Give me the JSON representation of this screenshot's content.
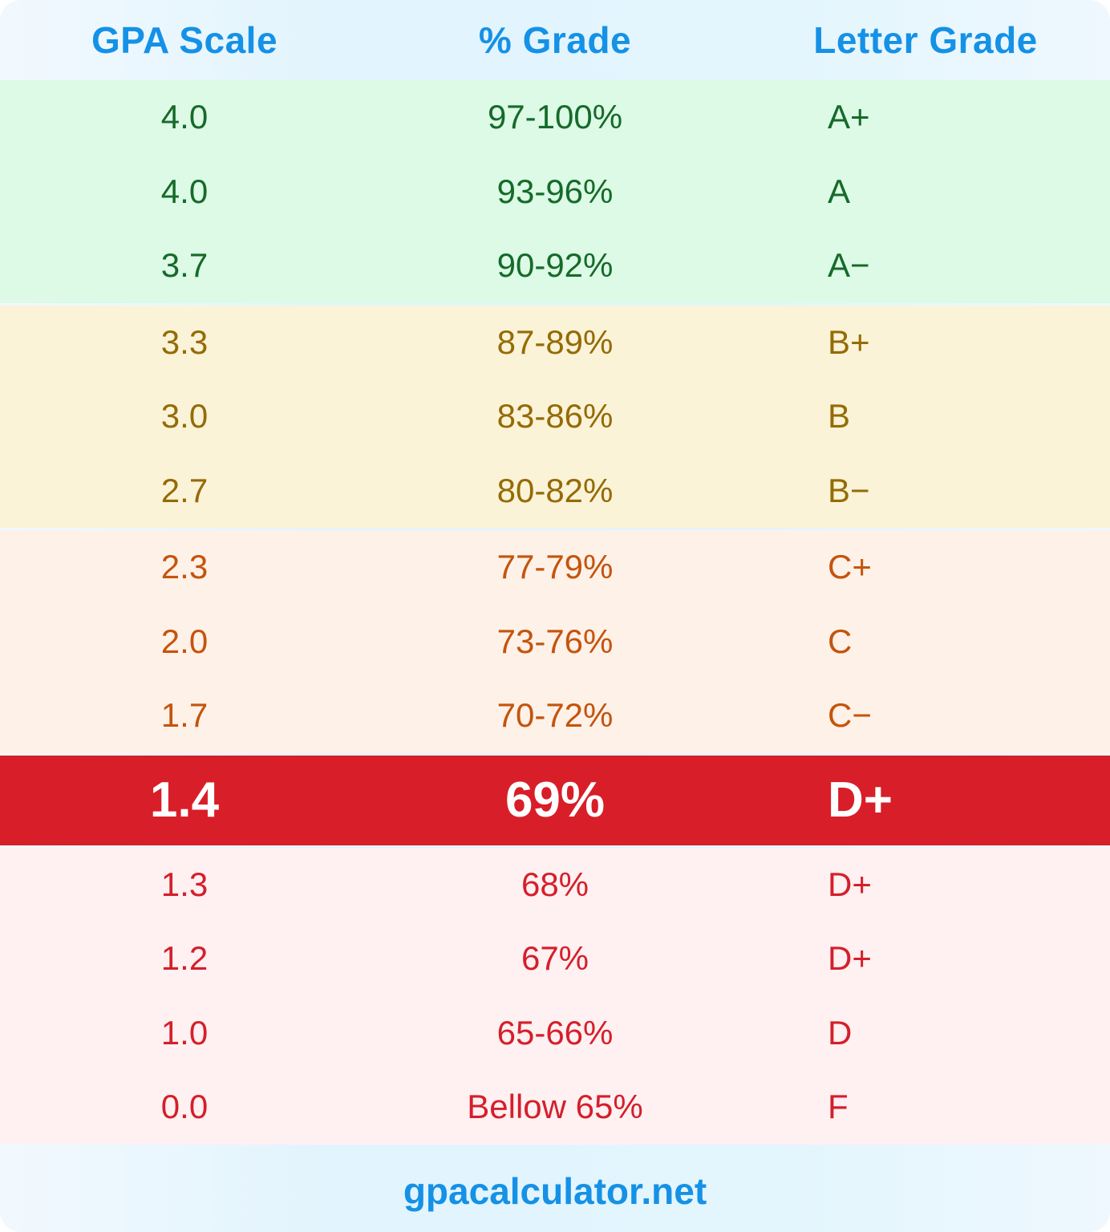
{
  "header": {
    "gpa_label": "GPA Scale",
    "percent_label": "% Grade",
    "letter_label": "Letter Grade"
  },
  "groups": {
    "green": {
      "color": "#166a2a",
      "background": "#dcfae5",
      "rows": [
        {
          "gpa": "4.0",
          "percent": "97-100%",
          "letter": "A+"
        },
        {
          "gpa": "4.0",
          "percent": "93-96%",
          "letter": "A"
        },
        {
          "gpa": "3.7",
          "percent": "90-92%",
          "letter": "A−"
        }
      ]
    },
    "yellow": {
      "color": "#946b05",
      "background": "#fbf3d8",
      "rows": [
        {
          "gpa": "3.3",
          "percent": "87-89%",
          "letter": "B+"
        },
        {
          "gpa": "3.0",
          "percent": "83-86%",
          "letter": "B"
        },
        {
          "gpa": "2.7",
          "percent": "80-82%",
          "letter": "B−"
        }
      ]
    },
    "peach": {
      "color": "#c4540d",
      "background": "#fef1e8",
      "rows": [
        {
          "gpa": "2.3",
          "percent": "77-79%",
          "letter": "C+"
        },
        {
          "gpa": "2.0",
          "percent": "73-76%",
          "letter": "C"
        },
        {
          "gpa": "1.7",
          "percent": "70-72%",
          "letter": "C−"
        }
      ]
    },
    "pink": {
      "color": "#d41f2b",
      "background": "#fff0f1",
      "rows": [
        {
          "gpa": "1.3",
          "percent": "68%",
          "letter": "D+"
        },
        {
          "gpa": "1.2",
          "percent": "67%",
          "letter": "D+"
        },
        {
          "gpa": "1.0",
          "percent": "65-66%",
          "letter": "D"
        },
        {
          "gpa": "0.0",
          "percent": "Bellow 65%",
          "letter": "F"
        }
      ]
    }
  },
  "highlight": {
    "gpa": "1.4",
    "percent": "69%",
    "letter": "D+",
    "background": "#d81e28",
    "color": "#ffffff"
  },
  "footer": {
    "site": "gpacalculator.net"
  },
  "colors": {
    "accent": "#1591e6"
  }
}
